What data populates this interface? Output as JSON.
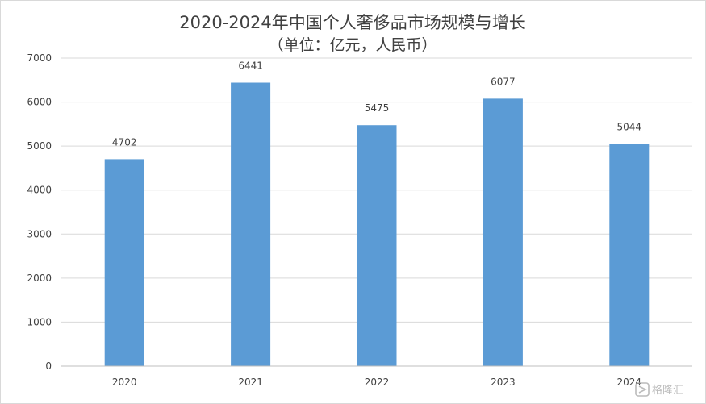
{
  "chart_data": {
    "type": "bar",
    "title": "2020-2024年中国个人奢侈品市场规模与增长",
    "subtitle": "（单位：亿元，人民币）",
    "categories": [
      "2020",
      "2021",
      "2022",
      "2023",
      "2024"
    ],
    "values": [
      4702,
      6441,
      5475,
      6077,
      5044
    ],
    "data_labels": [
      "4702",
      "6441",
      "5475",
      "6077",
      "5044"
    ],
    "ylim": [
      0,
      7000
    ],
    "yticks": [
      0,
      1000,
      2000,
      3000,
      4000,
      5000,
      6000,
      7000
    ],
    "ytick_labels": [
      "0",
      "1000",
      "2000",
      "3000",
      "4000",
      "5000",
      "6000",
      "7000"
    ],
    "xlabel": "",
    "ylabel": "",
    "grid": true,
    "legend": "none",
    "bar_color": "#5b9bd5"
  },
  "watermark": {
    "text": "格隆汇",
    "icon": "gelonghui-logo-icon"
  }
}
